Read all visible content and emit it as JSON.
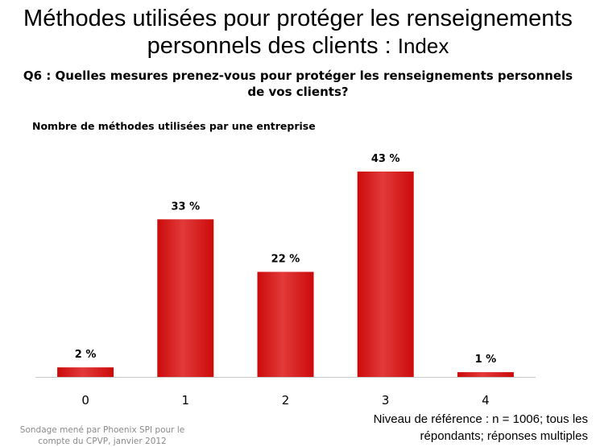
{
  "slide": {
    "title_main": "Méthodes utilisées pour protéger les renseignements personnels des clients :",
    "title_suffix": "Index",
    "question": "Q6 : Quelles mesures prenez-vous pour protéger les renseignements personnels de vos clients?",
    "source_note": "Sondage mené par Phoenix SPI pour le compte du CPVP, janvier 2012",
    "base_note": "Niveau de référence : n = 1006; tous les répondants; réponses multiples"
  },
  "colors": {
    "bar": "#cc0a0a",
    "bar_top": "#e23a3a",
    "axis": "#c8c8c8"
  },
  "chart_data": {
    "type": "bar",
    "title": "Nombre de méthodes utilisées par une entreprise",
    "categories": [
      "0",
      "1",
      "2",
      "3",
      "4"
    ],
    "values": [
      2,
      33,
      22,
      43,
      1
    ],
    "value_labels": [
      "2 %",
      "33 %",
      "22 %",
      "43 %",
      "1 %"
    ],
    "ylim": [
      0,
      43
    ],
    "grid": false,
    "legend": "none"
  }
}
